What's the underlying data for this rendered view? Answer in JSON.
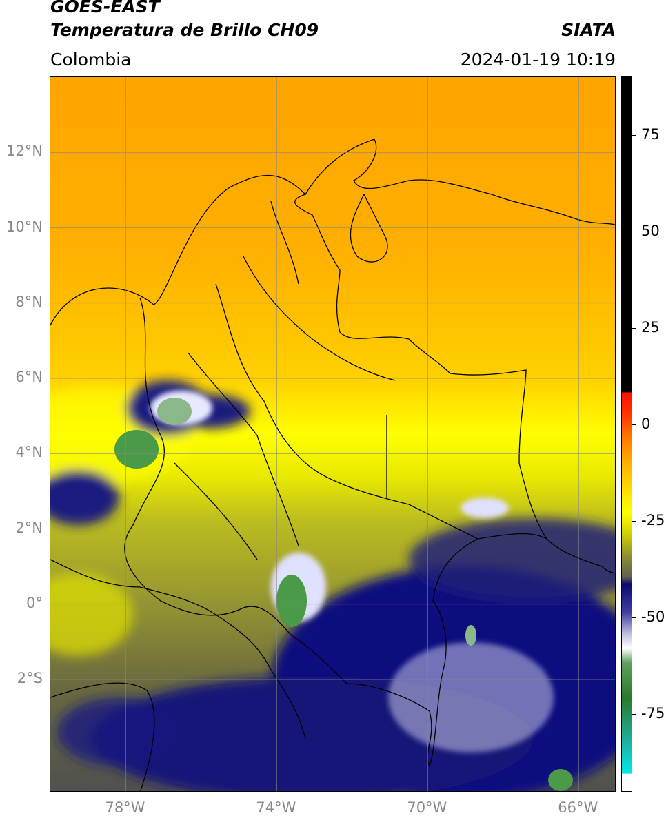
{
  "header": {
    "line1": "GOES-EAST",
    "line2": "Temperatura de Brillo CH09",
    "brand": "SIATA",
    "region": "Colombia",
    "datetime": "2024-01-19 10:19"
  },
  "map": {
    "lat_labels": [
      {
        "label": "12°N",
        "lat": 12
      },
      {
        "label": "10°N",
        "lat": 10
      },
      {
        "label": "8°N",
        "lat": 8
      },
      {
        "label": "6°N",
        "lat": 6
      },
      {
        "label": "4°N",
        "lat": 4
      },
      {
        "label": "2°N",
        "lat": 2
      },
      {
        "label": "0°",
        "lat": 0
      },
      {
        "label": "2°S",
        "lat": -2
      }
    ],
    "lon_labels": [
      {
        "label": "78°W",
        "lon": -78
      },
      {
        "label": "74°W",
        "lon": -74
      },
      {
        "label": "70°W",
        "lon": -70
      },
      {
        "label": "66°W",
        "lon": -66
      }
    ],
    "lon_range": [
      -80,
      -65
    ],
    "lat_range": [
      -5,
      14
    ]
  },
  "colorbar": {
    "ticks": [
      "75",
      "50",
      "25",
      "0",
      "-25",
      "-50",
      "-75"
    ],
    "tick_values": [
      75,
      50,
      25,
      0,
      -25,
      -50,
      -75
    ],
    "range": [
      -95,
      90
    ],
    "colors": {
      "black": "#000000",
      "red": "#ff2200",
      "orange": "#ffa200",
      "yellow": "#ffff00",
      "olive": "#8a8a30",
      "navy": "#101080",
      "white": "#ffffff",
      "green": "#3a8a3a",
      "teal": "#20c0b0",
      "cyan": "#00e0e0"
    }
  }
}
